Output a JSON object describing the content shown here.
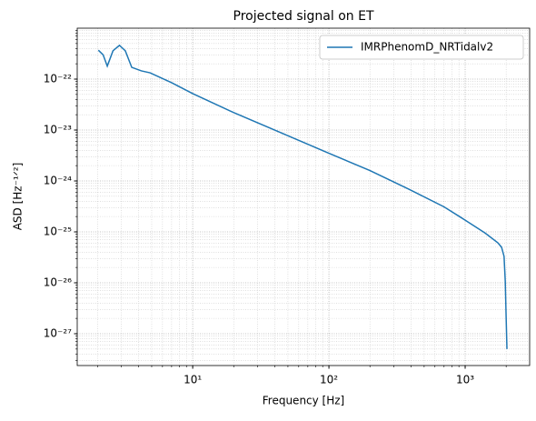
{
  "chart_data": {
    "type": "line",
    "title": "Projected signal on ET",
    "x_label": "Frequency [Hz]",
    "y_label": "ASD [Hz⁻¹ᐟ²]",
    "x": [
      2.03,
      2.2,
      2.36,
      2.6,
      2.9,
      3.2,
      3.57,
      4.2,
      4.86,
      7,
      10,
      20,
      38.6,
      100,
      200,
      386,
      700,
      1000,
      1400,
      1738,
      1850,
      1930,
      1970,
      2000,
      2027
    ],
    "series": [
      {
        "name": "IMRPhenomD_NRTidalv2",
        "color": "#1f77b4",
        "values": [
          3.7e-22,
          3e-22,
          1.8e-22,
          3.6e-22,
          4.6e-22,
          3.6e-22,
          1.7e-22,
          1.45e-22,
          1.33e-22,
          8.5e-23,
          5.2e-23,
          2.2e-23,
          1.04e-23,
          3.5e-24,
          1.6e-24,
          6.9e-25,
          3.1e-25,
          1.7e-25,
          9.5e-26,
          6.1e-26,
          5e-26,
          3.3e-26,
          1.05e-26,
          2e-27,
          5e-28
        ]
      }
    ],
    "xlim": [
      1.42,
      2974
    ],
    "ylim": [
      2.37e-28,
      1e-21
    ],
    "xticks": [
      {
        "value": 10,
        "label": "10¹"
      },
      {
        "value": 100,
        "label": "10²"
      },
      {
        "value": 1000,
        "label": "10³"
      }
    ],
    "yticks": [
      {
        "value": 1e-27,
        "label": "10⁻²⁷"
      },
      {
        "value": 1e-26,
        "label": "10⁻²⁶"
      },
      {
        "value": 1e-25,
        "label": "10⁻²⁵"
      },
      {
        "value": 1e-24,
        "label": "10⁻²⁴"
      },
      {
        "value": 1e-23,
        "label": "10⁻²³"
      },
      {
        "value": 1e-22,
        "label": "10⁻²²"
      }
    ],
    "xscale": "log",
    "yscale": "log",
    "grid": true,
    "legend": "upper right"
  }
}
